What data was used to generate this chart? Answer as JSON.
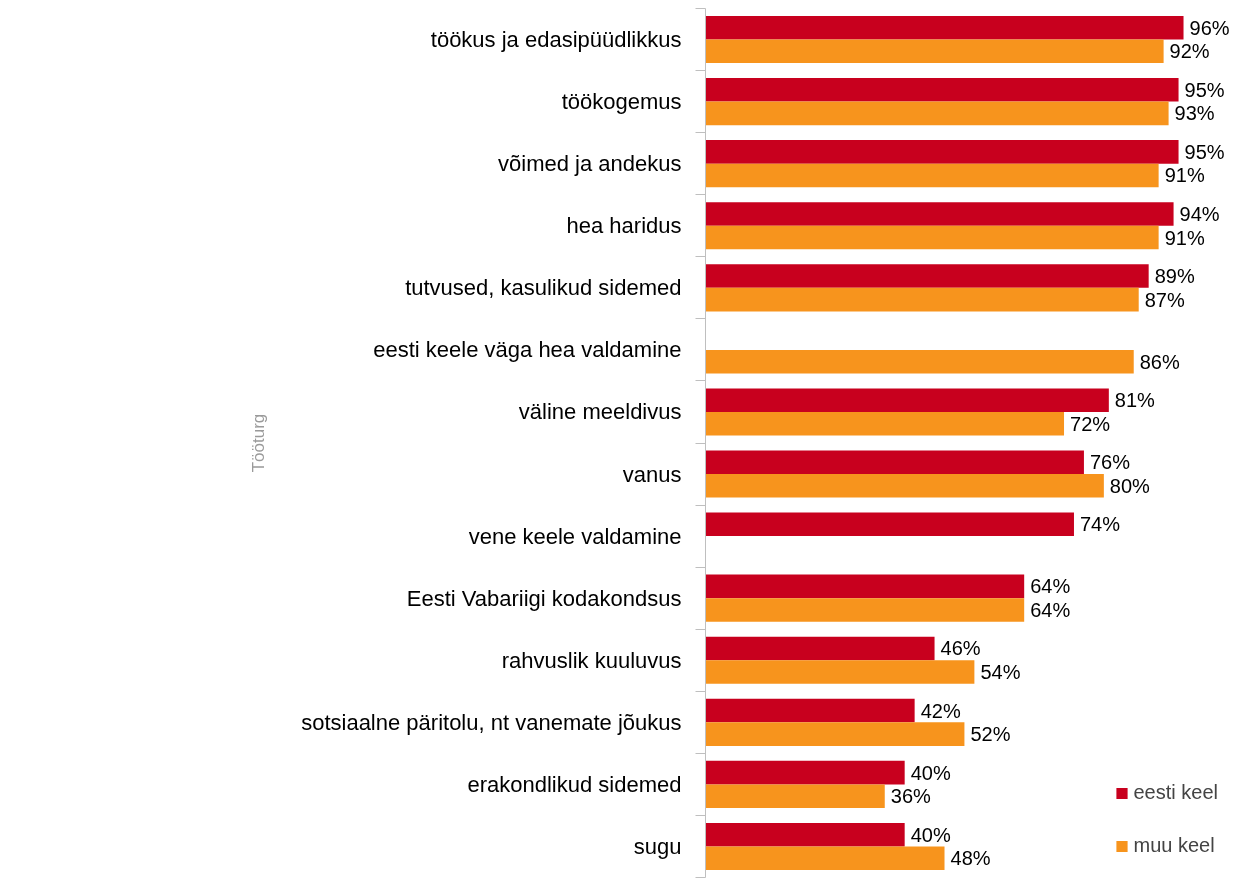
{
  "chart_data": {
    "type": "bar",
    "orientation": "horizontal",
    "ylabel": "Tööturg",
    "categories": [
      "töökus ja edasipüüdlikkus",
      "töökogemus",
      "võimed ja andekus",
      "hea haridus",
      "tutvused, kasulikud sidemed",
      "eesti keele väga hea valdamine",
      "väline meeldivus",
      "vanus",
      "vene keele valdamine",
      "Eesti Vabariigi kodakondsus",
      "rahvuslik kuuluvus",
      "sotsiaalne päritolu, nt vanemate jõukus",
      "erakondlikud sidemed",
      "sugu"
    ],
    "series": [
      {
        "name": "eesti keel",
        "color": "#c8001e",
        "values": [
          96,
          95,
          95,
          94,
          89,
          null,
          81,
          76,
          74,
          64,
          46,
          42,
          40,
          40
        ],
        "value_labels": [
          "96%",
          "95%",
          "95%",
          "94%",
          "89%",
          null,
          "81%",
          "76%",
          "74%",
          "64%",
          "46%",
          "42%",
          "40%",
          "40%"
        ]
      },
      {
        "name": "muu keel",
        "color": "#f7941d",
        "values": [
          92,
          93,
          91,
          91,
          87,
          86,
          72,
          80,
          null,
          64,
          54,
          52,
          36,
          48
        ],
        "value_labels": [
          "92%",
          "93%",
          "91%",
          "91%",
          "87%",
          "86%",
          "72%",
          "80%",
          null,
          "64%",
          "54%",
          "52%",
          "36%",
          "48%"
        ]
      }
    ],
    "legend": "bottom right",
    "grid": false,
    "tick_labels": "y"
  }
}
